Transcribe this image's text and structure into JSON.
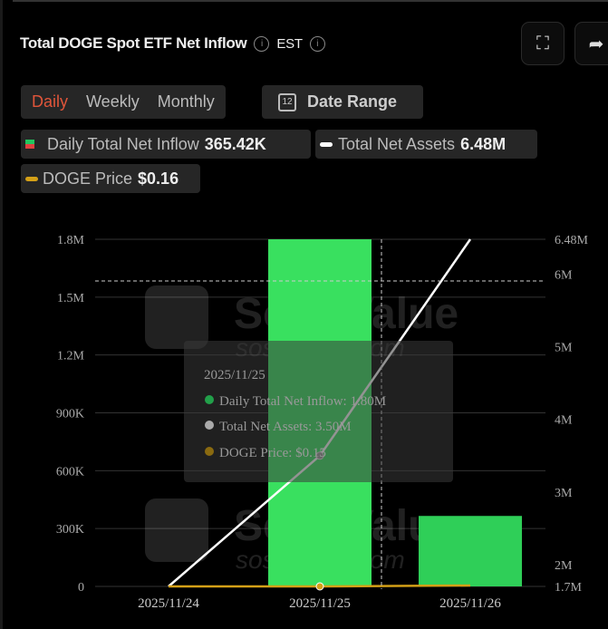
{
  "header": {
    "title": "Total DOGE Spot ETF Net Inflow",
    "timezone": "EST",
    "fullscreen_icon": "expand-icon",
    "share_icon": "share-icon"
  },
  "tabs": [
    {
      "label": "Daily",
      "active": true
    },
    {
      "label": "Weekly"
    },
    {
      "label": "Monthly"
    }
  ],
  "date_range": {
    "label": "Date Range",
    "icon": "calendar-icon",
    "icon_text": "12"
  },
  "legend": [
    {
      "label": "Daily Total Net Inflow",
      "value": "365.42K",
      "color": "#22c55e"
    },
    {
      "label": "Total Net Assets",
      "value": "6.48M",
      "color": "#ffffff"
    },
    {
      "label": "DOGE Price",
      "value": "$0.16",
      "color": "#d4a017"
    }
  ],
  "tooltip": {
    "date": "2025/11/25",
    "rows": [
      "Daily Total Net Inflow: 1.80M",
      "Total Net Assets: 3.50M",
      "DOGE Price: $0.15"
    ]
  },
  "watermark": {
    "brand": "SoSoValue",
    "url": "sosovalue.com"
  },
  "chart_data": {
    "type": "bar",
    "categories": [
      "2025/11/24",
      "2025/11/25",
      "2025/11/26"
    ],
    "series": [
      {
        "name": "Daily Total Net Inflow",
        "type": "bar",
        "axis": "left",
        "values": [
          0,
          1800000,
          365420
        ],
        "color": "#39e05f"
      },
      {
        "name": "Total Net Assets",
        "type": "line",
        "axis": "right",
        "values": [
          1700000,
          3500000,
          6480000
        ],
        "color": "#ffffff"
      },
      {
        "name": "DOGE Price",
        "type": "line",
        "axis": "price",
        "values": [
          0.15,
          0.15,
          0.16
        ],
        "color": "#d4a017"
      }
    ],
    "left_axis": {
      "ticks": [
        "0",
        "300K",
        "600K",
        "900K",
        "1.2M",
        "1.5M",
        "1.8M"
      ],
      "range": [
        0,
        1800000
      ]
    },
    "right_axis": {
      "ticks": [
        "1.7M",
        "2M",
        "3M",
        "4M",
        "5M",
        "6M",
        "6.48M"
      ],
      "range": [
        1700000,
        6480000
      ]
    },
    "grid": true
  }
}
